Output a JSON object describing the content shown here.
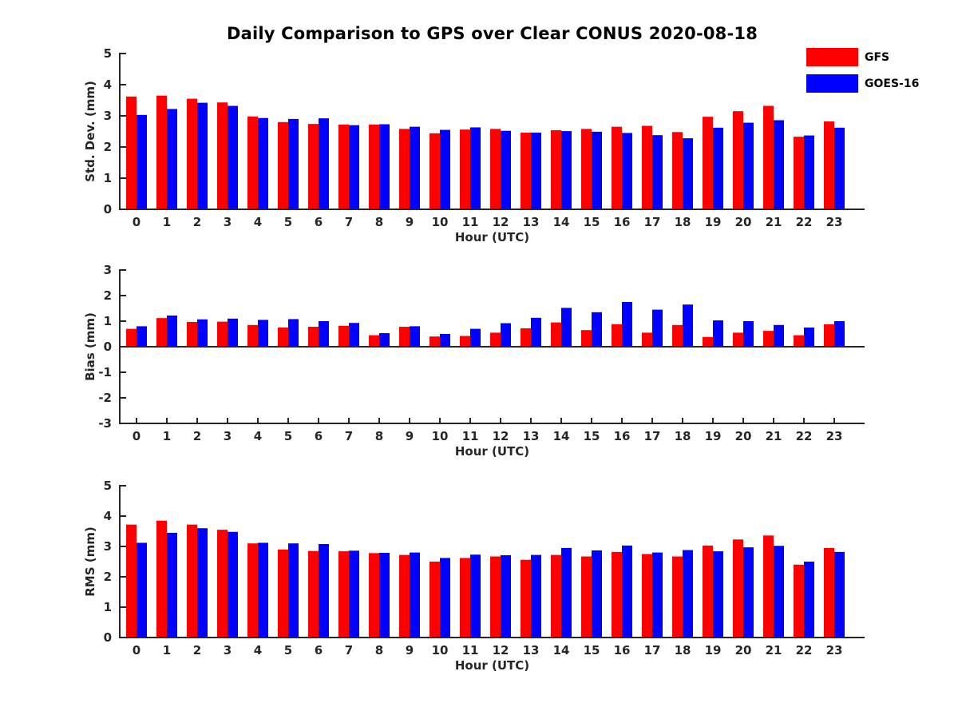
{
  "title": "Daily Comparison to GPS over Clear CONUS 2020-08-18",
  "legend": {
    "position": "top-right",
    "items": [
      {
        "label": "GFS",
        "color": "#ff0000"
      },
      {
        "label": "GOES-16",
        "color": "#0000ff"
      }
    ]
  },
  "colors": {
    "gfs": "#ff0000",
    "goes16": "#0000ff",
    "axis": "#262626",
    "title_text": "#000000",
    "background": "#ffffff"
  },
  "chart_data": [
    {
      "type": "bar",
      "title": "",
      "xlabel": "Hour (UTC)",
      "ylabel": "Std. Dev. (mm)",
      "ylim": [
        0,
        5
      ],
      "yticks": [
        0,
        1,
        2,
        3,
        4,
        5
      ],
      "grid": false,
      "categories": [
        "0",
        "1",
        "2",
        "3",
        "4",
        "5",
        "6",
        "7",
        "8",
        "9",
        "10",
        "11",
        "12",
        "13",
        "14",
        "15",
        "16",
        "17",
        "18",
        "19",
        "20",
        "21",
        "22",
        "23"
      ],
      "series": [
        {
          "name": "GFS",
          "color": "#ff0000",
          "values": [
            3.62,
            3.65,
            3.55,
            3.43,
            2.98,
            2.8,
            2.74,
            2.72,
            2.72,
            2.58,
            2.44,
            2.56,
            2.58,
            2.46,
            2.54,
            2.58,
            2.65,
            2.68,
            2.48,
            2.97,
            3.15,
            3.32,
            2.33,
            2.82
          ]
        },
        {
          "name": "GOES-16",
          "color": "#0000ff",
          "values": [
            3.03,
            3.22,
            3.42,
            3.32,
            2.93,
            2.9,
            2.92,
            2.7,
            2.73,
            2.65,
            2.55,
            2.63,
            2.52,
            2.46,
            2.51,
            2.49,
            2.45,
            2.38,
            2.28,
            2.62,
            2.78,
            2.86,
            2.37,
            2.62
          ]
        }
      ]
    },
    {
      "type": "bar",
      "title": "",
      "xlabel": "Hour (UTC)",
      "ylabel": "Bias (mm)",
      "ylim": [
        -3,
        3
      ],
      "yticks": [
        -3,
        -2,
        -1,
        0,
        1,
        2,
        3
      ],
      "grid": false,
      "categories": [
        "0",
        "1",
        "2",
        "3",
        "4",
        "5",
        "6",
        "7",
        "8",
        "9",
        "10",
        "11",
        "12",
        "13",
        "14",
        "15",
        "16",
        "17",
        "18",
        "19",
        "20",
        "21",
        "22",
        "23"
      ],
      "series": [
        {
          "name": "GFS",
          "color": "#ff0000",
          "values": [
            0.7,
            1.12,
            0.97,
            0.98,
            0.85,
            0.75,
            0.78,
            0.82,
            0.45,
            0.78,
            0.4,
            0.42,
            0.55,
            0.72,
            0.95,
            0.65,
            0.88,
            0.55,
            0.85,
            0.38,
            0.55,
            0.62,
            0.45,
            0.88
          ]
        },
        {
          "name": "GOES-16",
          "color": "#0000ff",
          "values": [
            0.8,
            1.22,
            1.07,
            1.1,
            1.05,
            1.08,
            1.0,
            0.93,
            0.53,
            0.8,
            0.5,
            0.7,
            0.92,
            1.13,
            1.52,
            1.35,
            1.75,
            1.45,
            1.65,
            1.03,
            1.0,
            0.85,
            0.75,
            1.0
          ]
        }
      ]
    },
    {
      "type": "bar",
      "title": "",
      "xlabel": "Hour (UTC)",
      "ylabel": "RMS (mm)",
      "ylim": [
        0,
        5
      ],
      "yticks": [
        0,
        1,
        2,
        3,
        4,
        5
      ],
      "grid": false,
      "categories": [
        "0",
        "1",
        "2",
        "3",
        "4",
        "5",
        "6",
        "7",
        "8",
        "9",
        "10",
        "11",
        "12",
        "13",
        "14",
        "15",
        "16",
        "17",
        "18",
        "19",
        "20",
        "21",
        "22",
        "23"
      ],
      "series": [
        {
          "name": "GFS",
          "color": "#ff0000",
          "values": [
            3.72,
            3.85,
            3.72,
            3.55,
            3.1,
            2.9,
            2.85,
            2.84,
            2.78,
            2.72,
            2.5,
            2.62,
            2.67,
            2.56,
            2.72,
            2.67,
            2.82,
            2.75,
            2.67,
            3.03,
            3.23,
            3.36,
            2.4,
            2.95
          ]
        },
        {
          "name": "GOES-16",
          "color": "#0000ff",
          "values": [
            3.12,
            3.45,
            3.6,
            3.48,
            3.12,
            3.1,
            3.08,
            2.86,
            2.79,
            2.8,
            2.62,
            2.73,
            2.71,
            2.72,
            2.95,
            2.87,
            3.03,
            2.8,
            2.88,
            2.84,
            2.97,
            3.02,
            2.5,
            2.82
          ]
        }
      ]
    }
  ]
}
